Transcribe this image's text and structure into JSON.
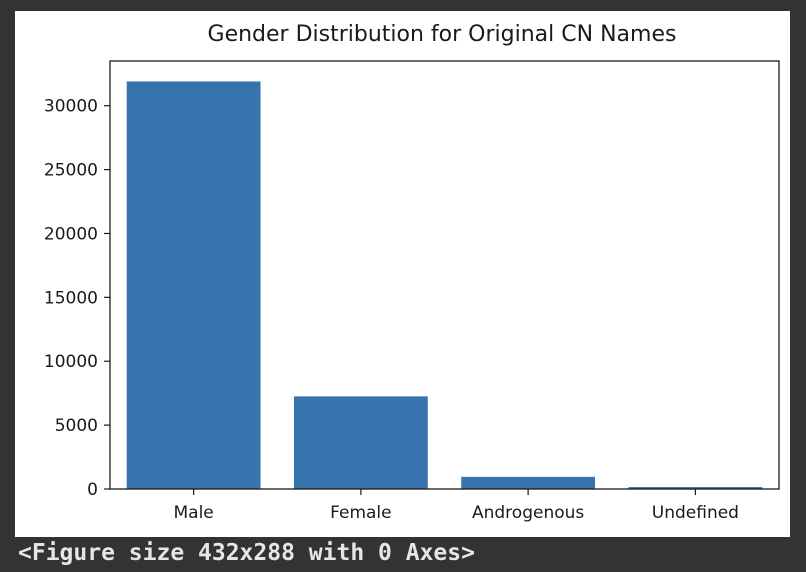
{
  "console": {
    "output_text": "<Figure size 432x288 with 0 Axes>"
  },
  "colors": {
    "bar": "#3774ad",
    "background": "#333333",
    "panel": "#ffffff"
  },
  "chart_data": {
    "type": "bar",
    "title": "Gender Distribution for Original CN Names",
    "xlabel": "",
    "ylabel": "",
    "categories": [
      "Male",
      "Female",
      "Androgenous",
      "Undefined"
    ],
    "values": [
      31900,
      7250,
      950,
      150
    ],
    "ylim": [
      0,
      33500
    ],
    "yticks": [
      0,
      5000,
      10000,
      15000,
      20000,
      25000,
      30000
    ],
    "ytick_labels": [
      "0",
      "5000",
      "10000",
      "15000",
      "20000",
      "25000",
      "30000"
    ],
    "grid": false,
    "legend": "none"
  }
}
